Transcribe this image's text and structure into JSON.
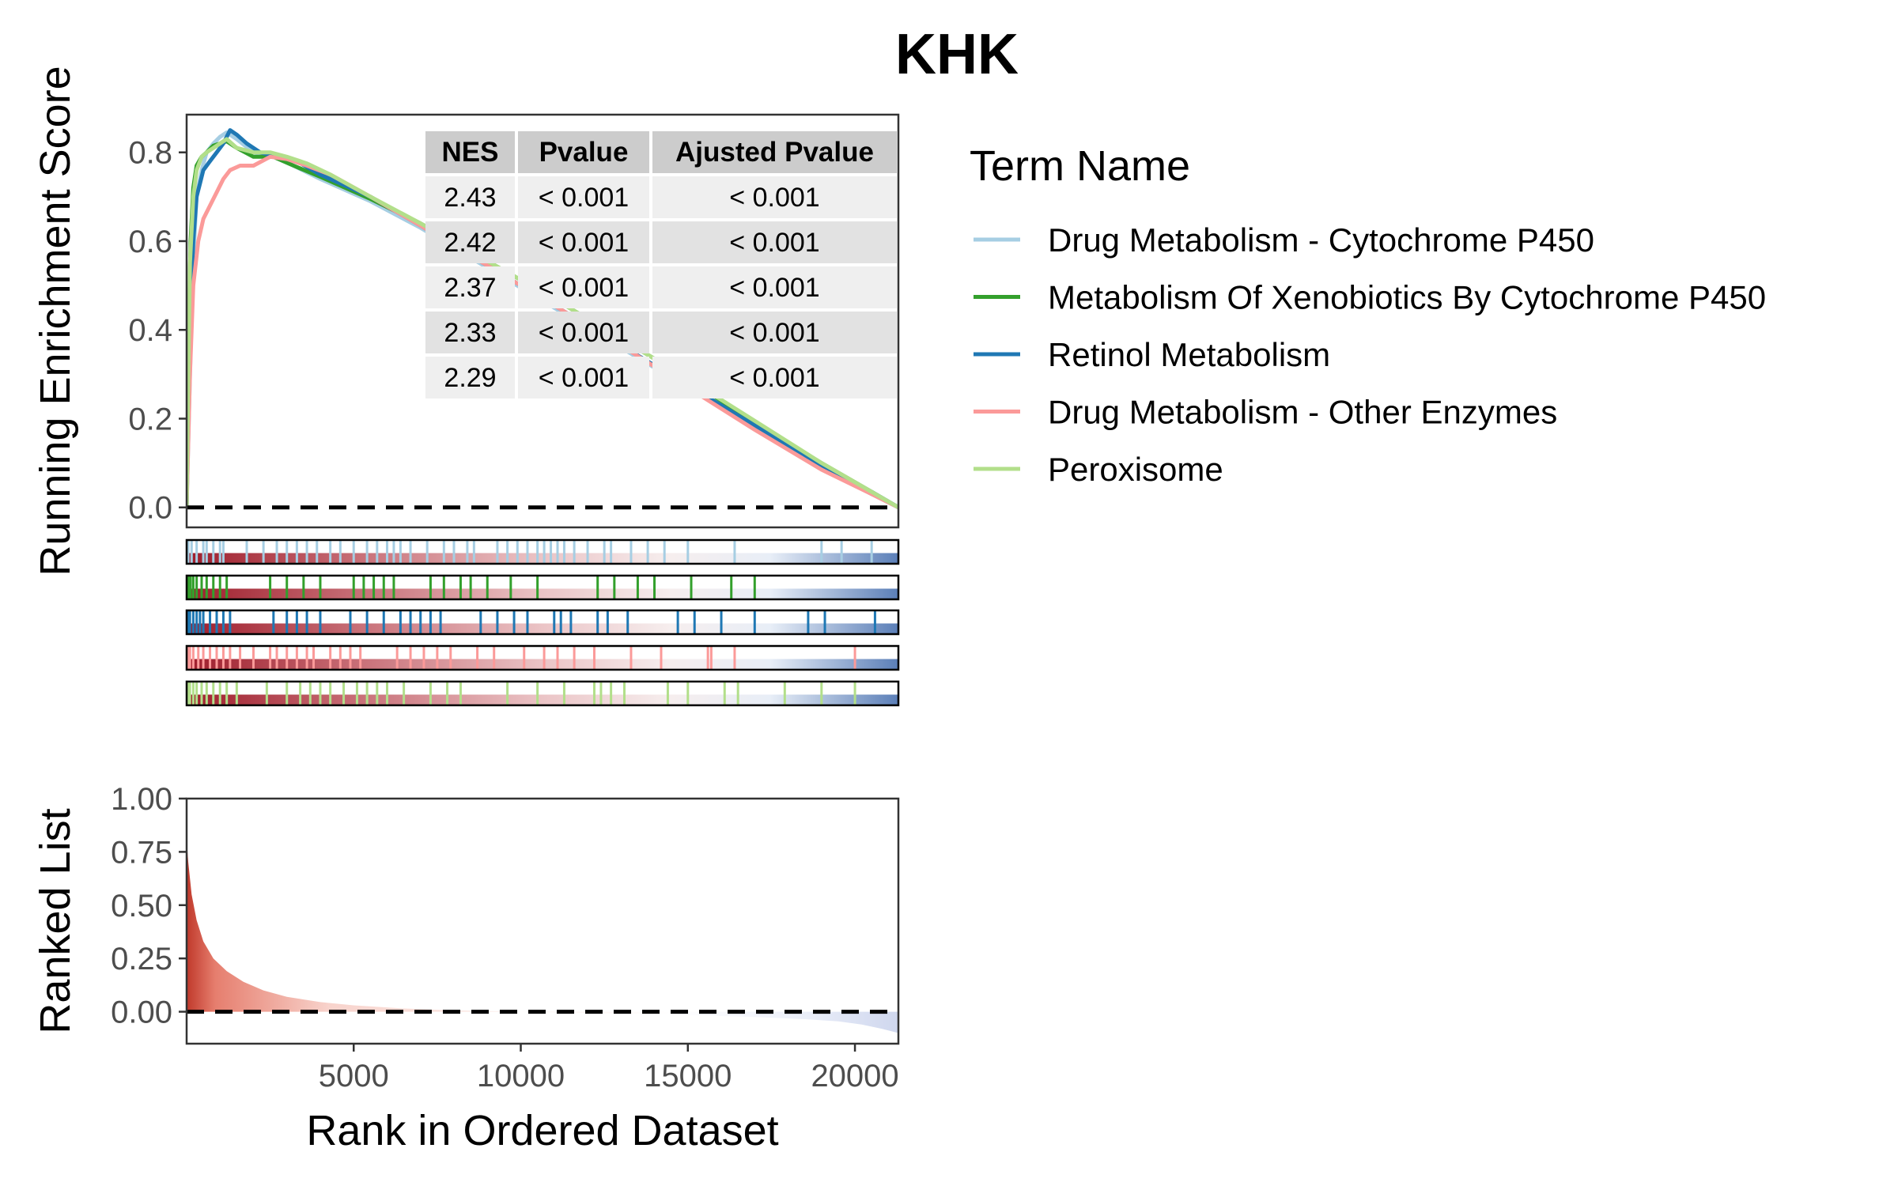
{
  "chart_data": {
    "type": "line",
    "title": "KHK",
    "top_panel": {
      "ylabel": "Running Enrichment Score",
      "ylim": [
        -0.045,
        0.885
      ],
      "yticks": [
        0.0,
        0.2,
        0.4,
        0.6,
        0.8
      ],
      "ytick_labels": [
        "0.0",
        "0.2",
        "0.4",
        "0.6",
        "0.8"
      ],
      "baseline": 0.0
    },
    "bottom_panel": {
      "ylabel": "Ranked List",
      "xlabel": "Rank in Ordered Dataset",
      "ylim": [
        -0.15,
        1.0
      ],
      "yticks": [
        0.0,
        0.25,
        0.5,
        0.75,
        1.0
      ],
      "ytick_labels": [
        "0.00",
        "0.25",
        "0.50",
        "0.75",
        "1.00"
      ],
      "baseline": 0.0,
      "ranked_metric": {
        "x": [
          1,
          50,
          150,
          300,
          500,
          800,
          1200,
          1700,
          2300,
          3000,
          4000,
          5000,
          6500,
          8000,
          10000,
          12000,
          14000,
          15500,
          17000,
          18500,
          19500,
          20200,
          20800,
          21300
        ],
        "y": [
          0.8,
          0.7,
          0.55,
          0.43,
          0.33,
          0.25,
          0.19,
          0.14,
          0.1,
          0.07,
          0.045,
          0.03,
          0.015,
          0.006,
          0.0,
          -0.005,
          -0.012,
          -0.018,
          -0.025,
          -0.035,
          -0.045,
          -0.06,
          -0.08,
          -0.1
        ]
      }
    },
    "xlim": [
      1,
      21300
    ],
    "xticks": [
      5000,
      10000,
      15000,
      20000
    ],
    "xtick_labels": [
      "5000",
      "10000",
      "15000",
      "20000"
    ],
    "legend": {
      "title": "Term Name",
      "position": "right"
    },
    "series": [
      {
        "name": "Drug Metabolism - Cytochrome P450",
        "color": "#a6cee3",
        "x": [
          1,
          100,
          200,
          300,
          450,
          600,
          800,
          1000,
          1200,
          1500,
          2000,
          2600,
          3200,
          4000,
          5500,
          7000,
          9000,
          11000,
          13000,
          15000,
          17000,
          19000,
          20500,
          21300
        ],
        "y": [
          0.0,
          0.3,
          0.56,
          0.7,
          0.76,
          0.8,
          0.82,
          0.835,
          0.845,
          0.83,
          0.8,
          0.79,
          0.77,
          0.74,
          0.69,
          0.63,
          0.54,
          0.45,
          0.36,
          0.27,
          0.18,
          0.09,
          0.03,
          0.0
        ]
      },
      {
        "name": "Metabolism Of Xenobiotics By Cytochrome P450",
        "color": "#33a02c",
        "x": [
          1,
          60,
          120,
          200,
          300,
          450,
          600,
          800,
          1000,
          1200,
          1500,
          2000,
          2600,
          3200,
          4000,
          5500,
          7000,
          9000,
          11000,
          13000,
          15000,
          17000,
          19000,
          20500,
          21300
        ],
        "y": [
          0.0,
          0.35,
          0.6,
          0.72,
          0.77,
          0.79,
          0.8,
          0.815,
          0.82,
          0.825,
          0.81,
          0.79,
          0.79,
          0.77,
          0.745,
          0.695,
          0.64,
          0.555,
          0.47,
          0.38,
          0.29,
          0.19,
          0.1,
          0.035,
          0.0
        ]
      },
      {
        "name": "Retinol Metabolism",
        "color": "#1f78b4",
        "x": [
          1,
          100,
          200,
          300,
          400,
          500,
          700,
          900,
          1100,
          1300,
          1500,
          1800,
          2200,
          2700,
          3300,
          4000,
          5500,
          7000,
          9000,
          11000,
          13000,
          15000,
          17000,
          19000,
          20500,
          21300
        ],
        "y": [
          0.0,
          0.4,
          0.6,
          0.7,
          0.73,
          0.76,
          0.78,
          0.8,
          0.82,
          0.85,
          0.84,
          0.82,
          0.8,
          0.79,
          0.78,
          0.75,
          0.7,
          0.635,
          0.545,
          0.455,
          0.365,
          0.275,
          0.185,
          0.095,
          0.035,
          0.0
        ]
      },
      {
        "name": "Drug Metabolism - Other Enzymes",
        "color": "#fb9a99",
        "x": [
          1,
          100,
          200,
          350,
          500,
          700,
          900,
          1100,
          1300,
          1600,
          2000,
          2500,
          3000,
          3600,
          4300,
          5500,
          7000,
          9000,
          11000,
          13000,
          15000,
          17000,
          19000,
          20500,
          21300
        ],
        "y": [
          0.0,
          0.3,
          0.5,
          0.6,
          0.65,
          0.68,
          0.71,
          0.74,
          0.76,
          0.77,
          0.77,
          0.79,
          0.785,
          0.77,
          0.75,
          0.7,
          0.635,
          0.545,
          0.455,
          0.365,
          0.27,
          0.175,
          0.085,
          0.03,
          0.0
        ]
      },
      {
        "name": "Peroxisome",
        "color": "#b2df8a",
        "x": [
          1,
          50,
          100,
          200,
          300,
          450,
          600,
          800,
          1000,
          1200,
          1500,
          2000,
          2500,
          3000,
          3600,
          4300,
          5500,
          7000,
          9000,
          11000,
          13000,
          15000,
          17000,
          19000,
          20500,
          21300
        ],
        "y": [
          0.0,
          0.3,
          0.55,
          0.7,
          0.76,
          0.79,
          0.8,
          0.81,
          0.82,
          0.83,
          0.81,
          0.8,
          0.8,
          0.79,
          0.775,
          0.75,
          0.7,
          0.64,
          0.555,
          0.47,
          0.38,
          0.29,
          0.195,
          0.1,
          0.035,
          0.0
        ]
      }
    ],
    "hit_tracks": [
      [
        50,
        150,
        300,
        500,
        600,
        800,
        1000,
        1100,
        1800,
        2300,
        2700,
        3000,
        3300,
        3600,
        3900,
        4300,
        4600,
        5000,
        5400,
        5700,
        6000,
        6200,
        6400,
        6700,
        7200,
        7700,
        8000,
        8400,
        8600,
        9300,
        9600,
        9900,
        10200,
        10500,
        10700,
        10900,
        11100,
        11300,
        11600,
        12000,
        12500,
        12700,
        13300,
        13800,
        14300,
        15000,
        16400,
        19000,
        19600,
        20500
      ],
      [
        50,
        120,
        200,
        300,
        450,
        600,
        800,
        1000,
        1200,
        2500,
        3000,
        3500,
        4000,
        5000,
        5300,
        5600,
        5900,
        6200,
        7300,
        7700,
        8200,
        8500,
        9000,
        9700,
        10500,
        12300,
        12800,
        13500,
        14000,
        15100,
        16300,
        17000
      ],
      [
        50,
        100,
        200,
        300,
        400,
        500,
        700,
        900,
        1100,
        1300,
        2600,
        3000,
        3300,
        3600,
        4000,
        4900,
        5400,
        5900,
        6400,
        6700,
        7000,
        7300,
        7600,
        8800,
        9300,
        9800,
        10200,
        11000,
        11200,
        11500,
        12300,
        12600,
        13200,
        14700,
        15200,
        16000,
        17000,
        18600,
        19100,
        20600
      ],
      [
        50,
        100,
        200,
        350,
        500,
        700,
        900,
        1100,
        1300,
        1600,
        2000,
        2500,
        2700,
        3000,
        3300,
        3600,
        3800,
        4300,
        4600,
        4900,
        5200,
        6300,
        6700,
        7100,
        7500,
        7900,
        8700,
        9200,
        10100,
        10700,
        11100,
        11600,
        12200,
        13300,
        14200,
        15600,
        15700,
        16400,
        20000
      ],
      [
        50,
        100,
        200,
        300,
        450,
        600,
        800,
        1000,
        1200,
        1500,
        2400,
        3000,
        3400,
        3700,
        4000,
        4300,
        4700,
        5100,
        5400,
        5700,
        6000,
        6500,
        7300,
        7800,
        8200,
        9600,
        10500,
        11300,
        12200,
        12400,
        12700,
        13100,
        14400,
        15000,
        16100,
        16500,
        17900,
        19000,
        20000
      ]
    ],
    "table": {
      "columns": [
        "NES",
        "Pvalue",
        "Ajusted Pvalue"
      ],
      "rows": [
        [
          "2.43",
          "< 0.001",
          "< 0.001"
        ],
        [
          "2.42",
          "< 0.001",
          "< 0.001"
        ],
        [
          "2.37",
          "< 0.001",
          "< 0.001"
        ],
        [
          "2.33",
          "< 0.001",
          "< 0.001"
        ],
        [
          "2.29",
          "< 0.001",
          "< 0.001"
        ]
      ]
    }
  }
}
